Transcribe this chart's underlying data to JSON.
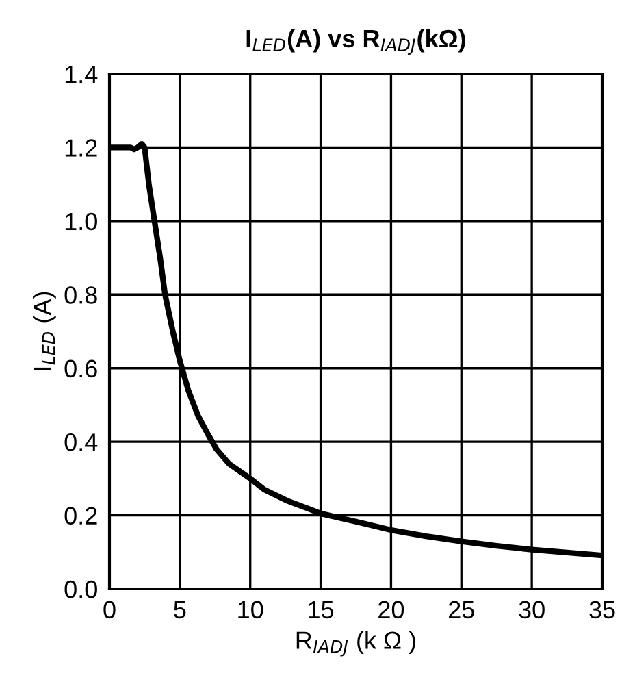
{
  "chart_data": {
    "type": "line",
    "title": "I$_{LED}$(A) vs R$_{IADJ}$(kΩ)",
    "xlabel": "R$_{IADJ}$ (k Ω )",
    "ylabel": "I$_{LED}$ (A)",
    "series": [
      {
        "color": "#000000",
        "x": [
          0,
          1,
          1.5,
          1.75,
          2,
          2.3,
          2.5,
          2.8,
          3.2,
          3.6,
          3.95,
          4.5,
          5,
          5.6,
          6.3,
          7,
          7.6,
          8.5,
          10,
          11,
          12.6,
          14,
          15,
          17.5,
          20,
          22.5,
          25,
          27.5,
          30,
          32.5,
          35
        ],
        "values": [
          1.2,
          1.2,
          1.2,
          1.195,
          1.2,
          1.21,
          1.2,
          1.1,
          1.0,
          0.9,
          0.8,
          0.7,
          0.62,
          0.54,
          0.47,
          0.42,
          0.38,
          0.34,
          0.3,
          0.27,
          0.24,
          0.22,
          0.205,
          0.183,
          0.16,
          0.143,
          0.129,
          0.117,
          0.107,
          0.099,
          0.091
        ]
      }
    ],
    "xlim": [
      0,
      35
    ],
    "xticks": [
      0,
      5,
      10,
      15,
      20,
      25,
      30,
      35
    ],
    "ylim": [
      0,
      1.4
    ],
    "yticks": [
      {
        "value": 0,
        "label": "0.0"
      },
      {
        "value": 0.2,
        "label": "0.2"
      },
      {
        "value": 0.4,
        "label": "0.4"
      },
      {
        "value": 0.6,
        "label": "0.6"
      },
      {
        "value": 0.8,
        "label": "0.8"
      },
      {
        "value": 1.0,
        "label": "1.0"
      },
      {
        "value": 1.2,
        "label": "1.2"
      },
      {
        "value": 1.4,
        "label": "1.4"
      }
    ],
    "grid": true,
    "legend": false,
    "marker": "none",
    "line_style": "solid"
  }
}
